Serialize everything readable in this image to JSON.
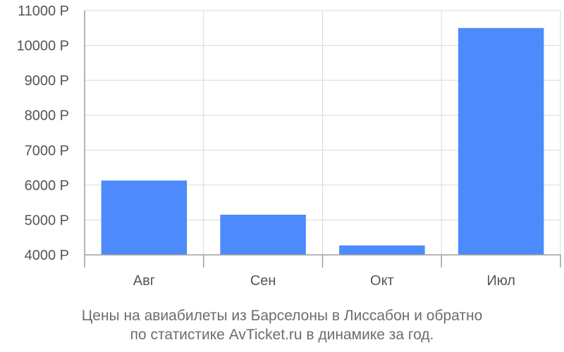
{
  "chart_data": {
    "type": "bar",
    "categories": [
      "Авг",
      "Сен",
      "Окт",
      "Июл"
    ],
    "values": [
      6130,
      5150,
      4270,
      10500
    ],
    "ylim": [
      4000,
      11000
    ],
    "y_ticks": [
      4000,
      5000,
      6000,
      7000,
      8000,
      9000,
      10000,
      11000
    ],
    "y_tick_suffix": " Р",
    "grid": true,
    "bar_color": "#4d8afc",
    "title": "",
    "xlabel": "",
    "ylabel": "",
    "caption_lines": [
      "Цены на авиабилеты из Барселоны в Лиссабон и обратно",
      "по статистике AvTicket.ru в динамике за год."
    ]
  }
}
